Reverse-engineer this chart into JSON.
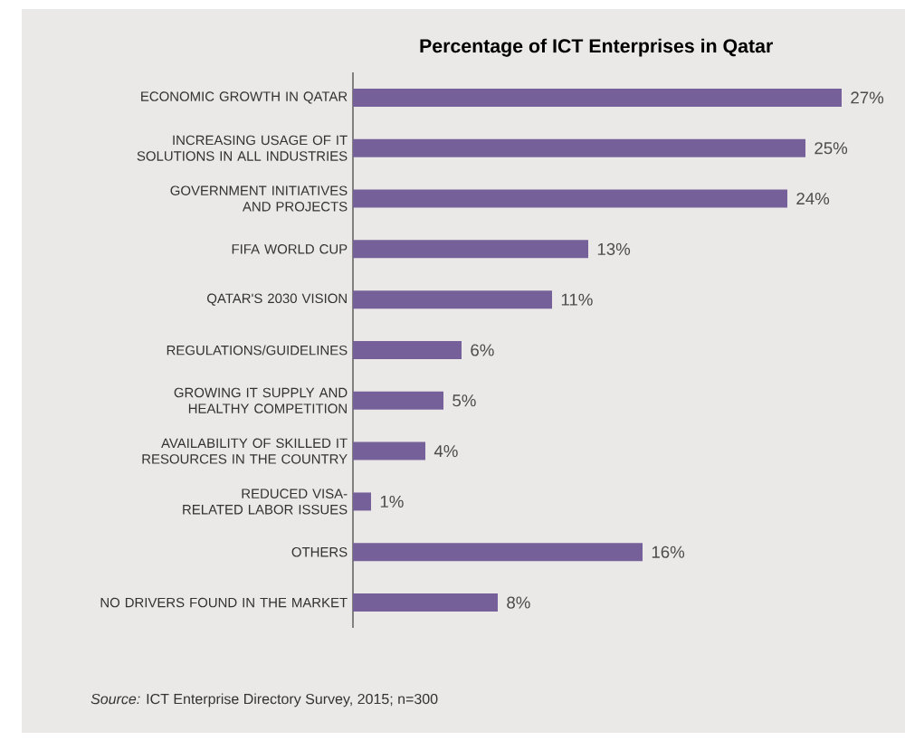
{
  "chart_data": {
    "type": "bar",
    "orientation": "horizontal",
    "title": "**Percentage of ICT Enterprises in Qatar**",
    "categories": [
      "ECONOMIC GROWTH IN QATAR",
      "INCREASING USAGE OF IT SOLUTIONS IN ALL INDUSTRIES",
      "GOVERNMENT INITIATIVES AND PROJECTS",
      "FIFA WORLD CUP",
      "QATAR'S 2030 VISION",
      "REGULATIONS/GUIDELINES",
      "GROWING IT SUPPLY AND HEALTHY COMPETITION",
      "AVAILABILITY OF SKILLED IT RESOURCES IN THE COUNTRY",
      "REDUCED VISA-RELATED LABOR ISSUES",
      "OTHERS",
      "NO DRIVERS FOUND IN THE MARKET"
    ],
    "values": [
      27,
      25,
      24,
      13,
      11,
      6,
      5,
      4,
      1,
      16,
      8
    ],
    "value_labels": [
      "27%",
      "25%",
      "24%",
      "13%",
      "11%",
      "6%",
      "5%",
      "4%",
      "1%",
      "16%",
      "8%"
    ],
    "color": "#76609a",
    "annotations": [
      "*Source:* ICT Enterprise Directory Survey, 2015; n=300"
    ]
  }
}
